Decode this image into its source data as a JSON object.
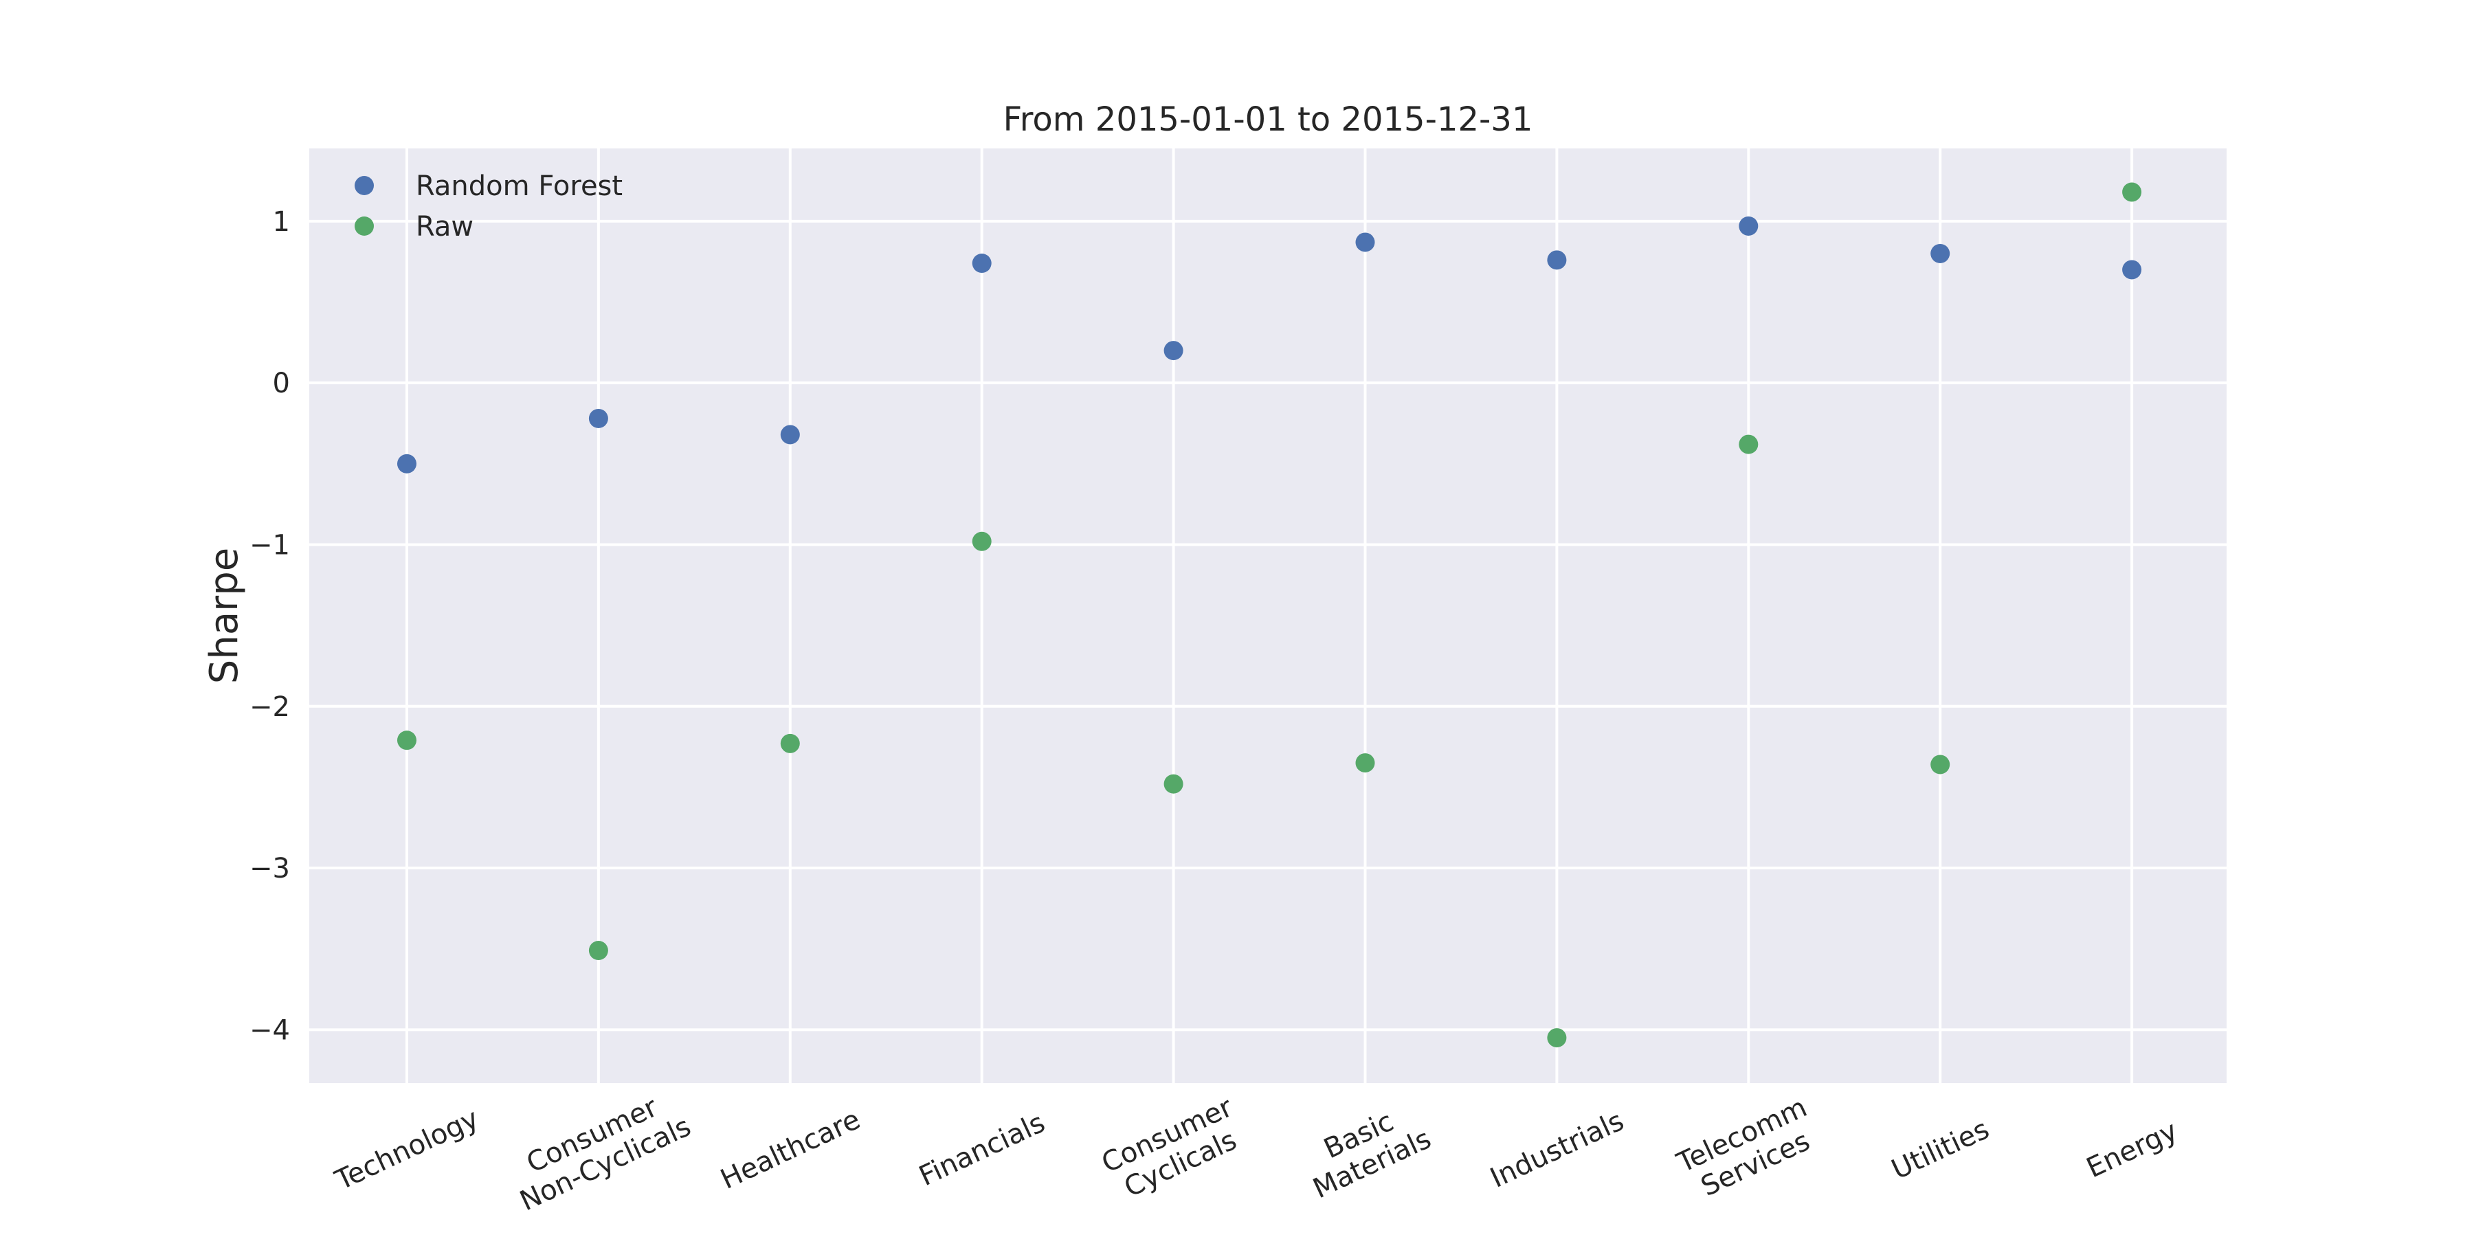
{
  "chart_data": {
    "type": "scatter",
    "title": "From 2015-01-01 to 2015-12-31",
    "xlabel": "",
    "ylabel": "Sharpe",
    "categories": [
      "Technology",
      "Consumer\nNon-Cyclicals",
      "Healthcare",
      "Financials",
      "Consumer\nCyclicals",
      "Basic\nMaterials",
      "Industrials",
      "Telecomm\nServices",
      "Utilities",
      "Energy"
    ],
    "series": [
      {
        "name": "Random Forest",
        "color": "#4c72b0",
        "values": [
          -0.5,
          -0.22,
          -0.32,
          0.74,
          0.2,
          0.87,
          0.76,
          0.97,
          0.8,
          0.7
        ]
      },
      {
        "name": "Raw",
        "color": "#55a868",
        "values": [
          -2.21,
          -3.51,
          -2.23,
          -0.98,
          -2.48,
          -2.35,
          -4.05,
          -0.38,
          -2.36,
          1.18
        ]
      }
    ],
    "y_ticks": [
      1,
      0,
      -1,
      -2,
      -3,
      -4
    ],
    "ylim": [
      -4.33,
      1.45
    ],
    "grid": true,
    "legend_position": "top-left",
    "background": "#eaeaf2",
    "grid_color": "#ffffff"
  }
}
